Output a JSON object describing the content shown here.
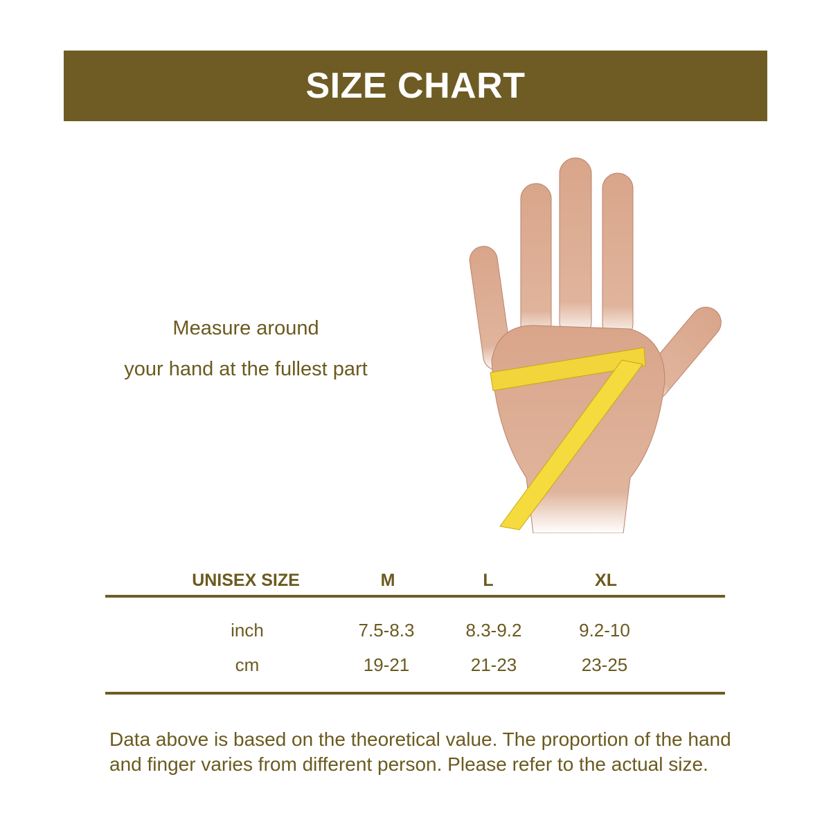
{
  "header": {
    "title": "SIZE CHART",
    "color": "#6e5c24"
  },
  "instruction": {
    "line1": "Measure around",
    "line2": "your hand at the fullest part"
  },
  "image": {
    "icon": "hand-with-measuring-tape"
  },
  "table": {
    "columns": [
      "UNISEX SIZE",
      "M",
      "L",
      "XL"
    ],
    "rows": [
      {
        "unit": "inch",
        "values": [
          "7.5-8.3",
          "8.3-9.2",
          "9.2-10"
        ]
      },
      {
        "unit": "cm",
        "values": [
          "19-21",
          "21-23",
          "23-25"
        ]
      }
    ]
  },
  "note": "Data above is based on the theoretical value. The proportion of the hand and finger varies from different person. Please refer to the actual size."
}
